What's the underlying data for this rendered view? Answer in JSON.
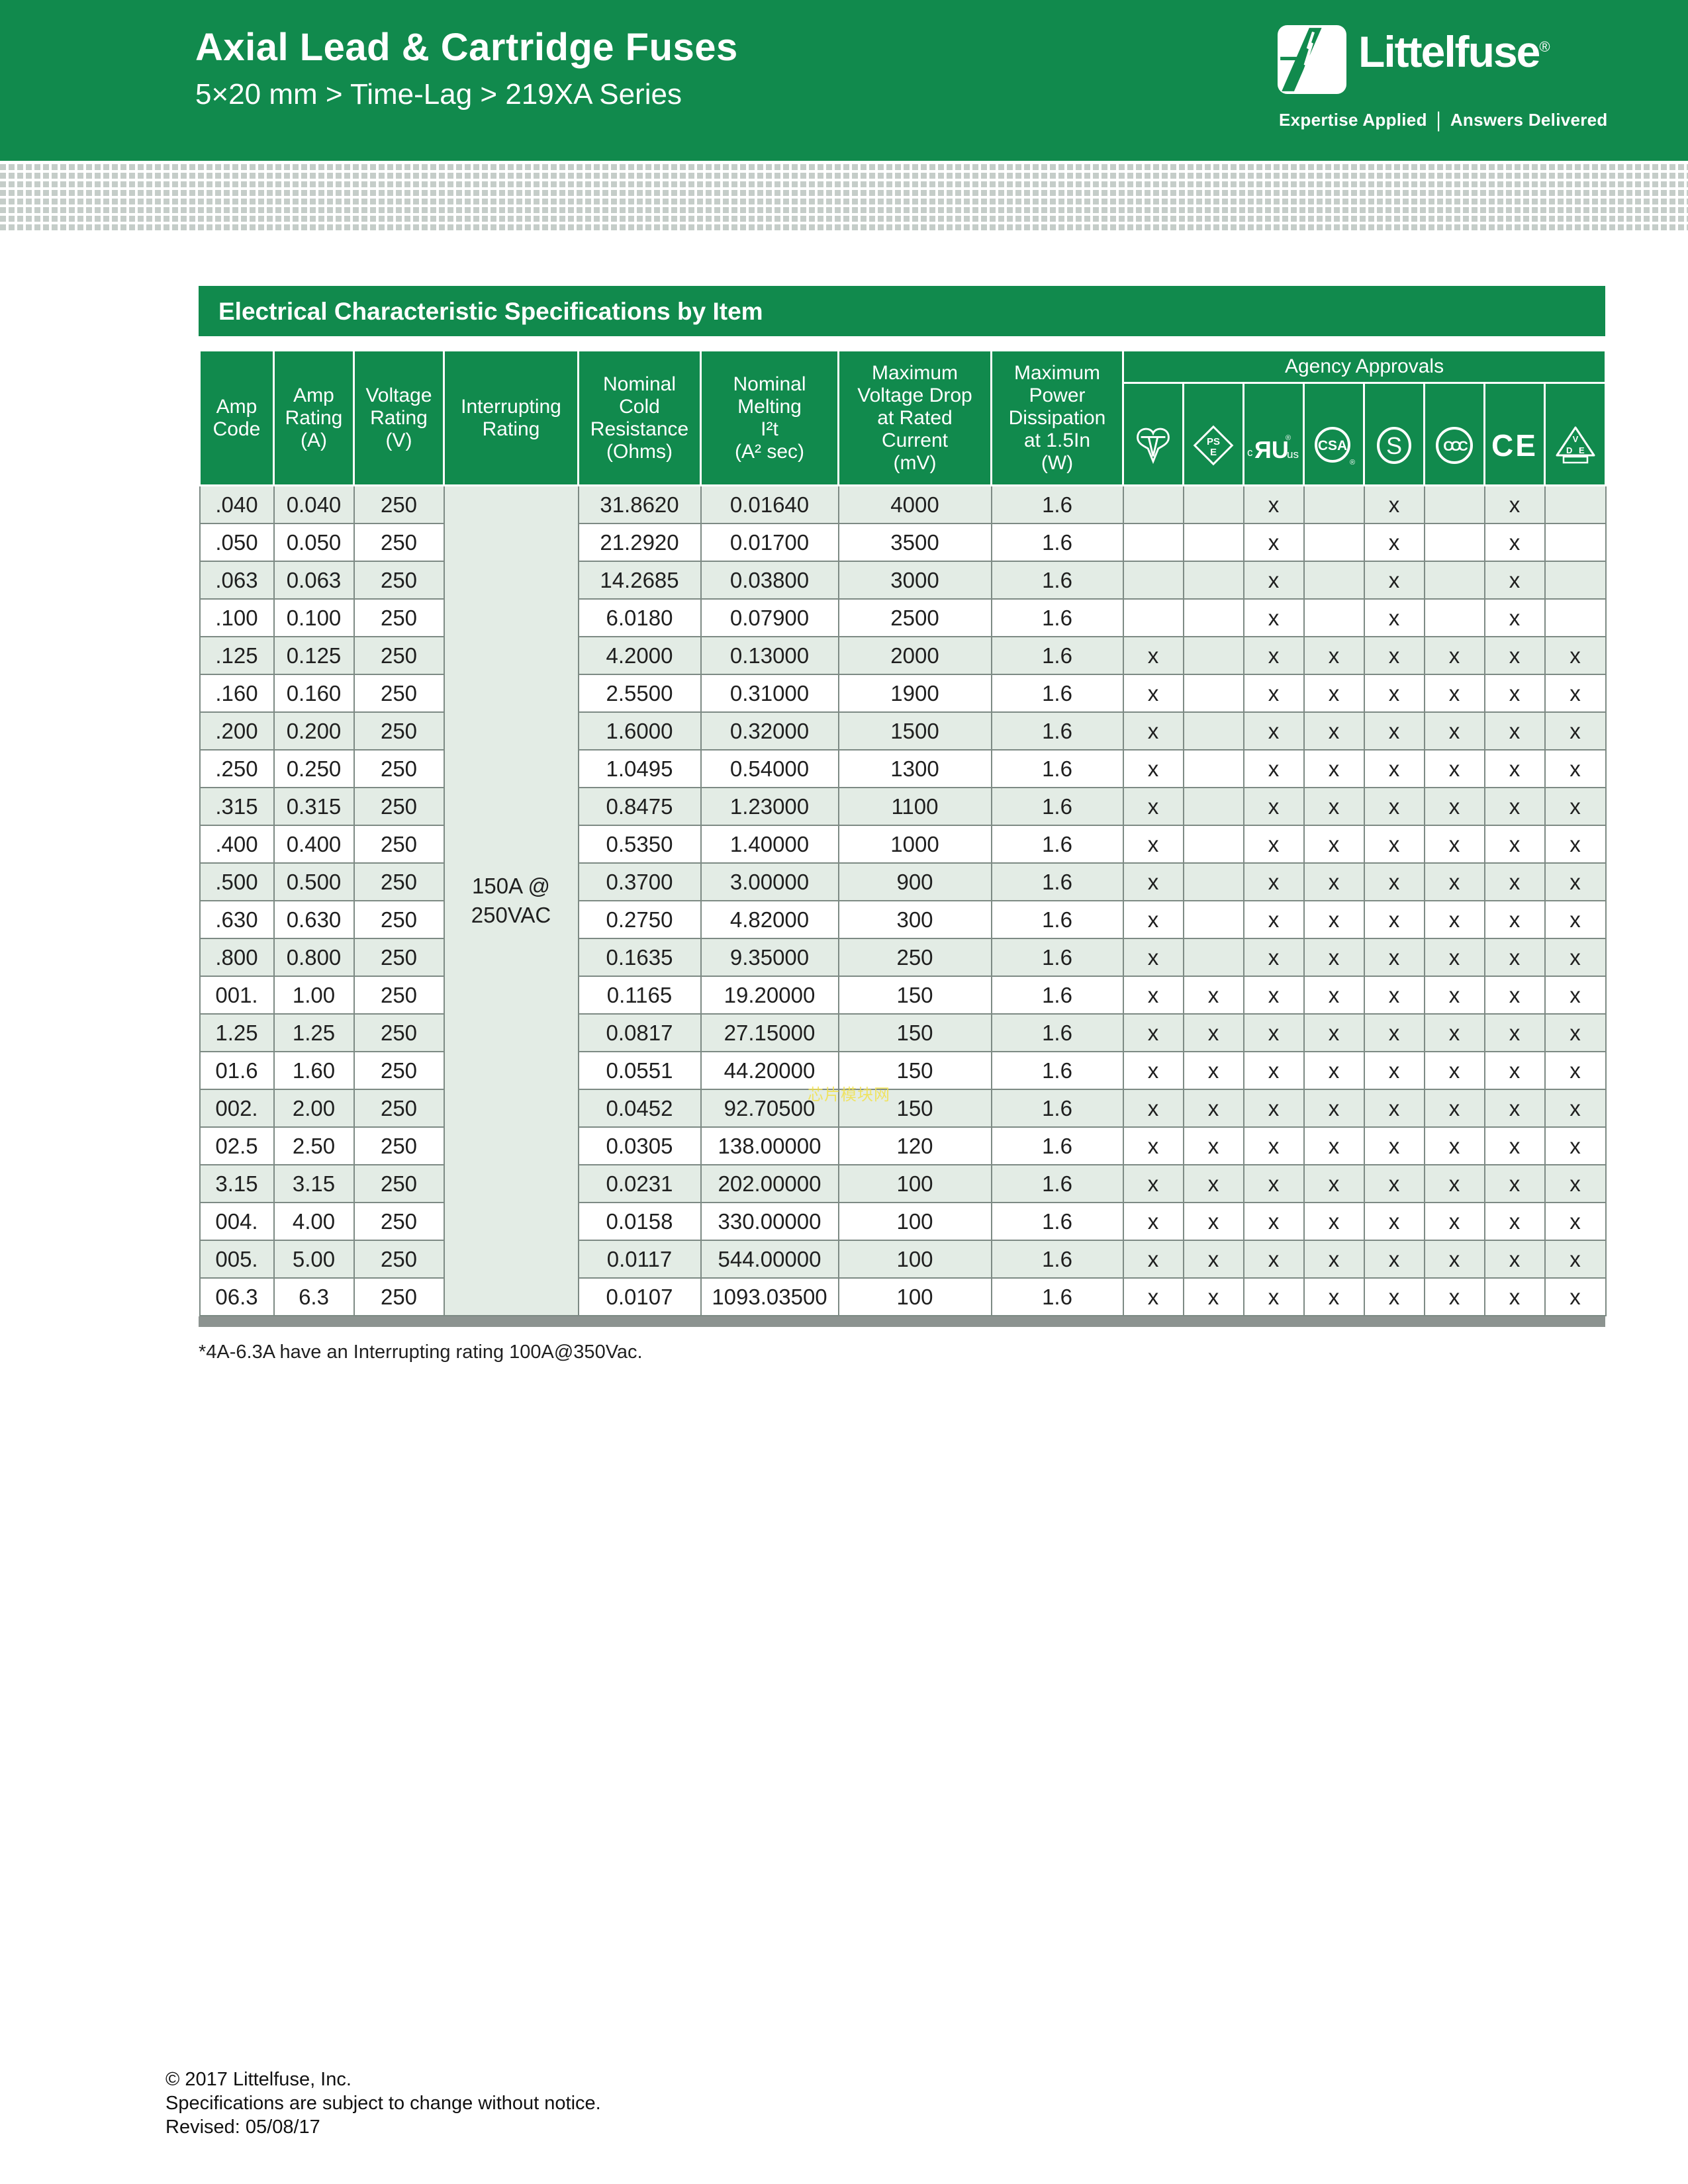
{
  "banner": {
    "title": "Axial Lead & Cartridge Fuses",
    "subtitle": "5×20 mm > Time-Lag > 219XA Series",
    "logo": {
      "text": "Littelfuse",
      "reg": "®",
      "tagline_left": "Expertise Applied",
      "tagline_sep": "|",
      "tagline_right": "Answers Delivered"
    }
  },
  "section": {
    "title": "Electrical Characteristic Specifications by Item"
  },
  "table": {
    "columns": {
      "amp_code": "Amp\nCode",
      "amp_rating": "Amp\nRating\n(A)",
      "voltage_rating": "Voltage\nRating\n(V)",
      "interrupting": "Interrupting\nRating",
      "cold_resistance": "Nominal\nCold\nResistance\n(Ohms)",
      "melting": "Nominal\nMelting\nI²t\n(A² sec)",
      "voltage_drop": "Maximum\nVoltage Drop\nat Rated\nCurrent\n(mV)",
      "power_dissipation": "Maximum\nPower\nDissipation\nat 1.5In\n(W)"
    },
    "agency_header": "Agency Approvals",
    "agencies": [
      {
        "name": "demko-mark"
      },
      {
        "name": "pse-mark",
        "line1": "PS",
        "line2": "E"
      },
      {
        "name": "cul-us-recognized-mark",
        "prefix": "c",
        "letters": "ЯU",
        "suffix": "us",
        "reg": "®"
      },
      {
        "name": "csa-mark",
        "letters": "CSA",
        "reg": "®"
      },
      {
        "name": "s-mark",
        "letters": "S"
      },
      {
        "name": "ccc-mark",
        "letters": "CCC"
      },
      {
        "name": "ce-mark",
        "letters": "CE"
      },
      {
        "name": "vde-mark",
        "v": "V",
        "d": "D",
        "e": "E"
      }
    ],
    "interrupting_value": "150A @\n250VAC",
    "rows": [
      {
        "code": ".040",
        "amp": "0.040",
        "volt": "250",
        "cold": "31.8620",
        "melt": "0.01640",
        "vdrop": "4000",
        "pdiss": "1.6",
        "approvals": [
          "",
          "",
          "x",
          "",
          "x",
          "",
          "x",
          ""
        ]
      },
      {
        "code": ".050",
        "amp": "0.050",
        "volt": "250",
        "cold": "21.2920",
        "melt": "0.01700",
        "vdrop": "3500",
        "pdiss": "1.6",
        "approvals": [
          "",
          "",
          "x",
          "",
          "x",
          "",
          "x",
          ""
        ]
      },
      {
        "code": ".063",
        "amp": "0.063",
        "volt": "250",
        "cold": "14.2685",
        "melt": "0.03800",
        "vdrop": "3000",
        "pdiss": "1.6",
        "approvals": [
          "",
          "",
          "x",
          "",
          "x",
          "",
          "x",
          ""
        ]
      },
      {
        "code": ".100",
        "amp": "0.100",
        "volt": "250",
        "cold": "6.0180",
        "melt": "0.07900",
        "vdrop": "2500",
        "pdiss": "1.6",
        "approvals": [
          "",
          "",
          "x",
          "",
          "x",
          "",
          "x",
          ""
        ]
      },
      {
        "code": ".125",
        "amp": "0.125",
        "volt": "250",
        "cold": "4.2000",
        "melt": "0.13000",
        "vdrop": "2000",
        "pdiss": "1.6",
        "approvals": [
          "x",
          "",
          "x",
          "x",
          "x",
          "x",
          "x",
          "x"
        ]
      },
      {
        "code": ".160",
        "amp": "0.160",
        "volt": "250",
        "cold": "2.5500",
        "melt": "0.31000",
        "vdrop": "1900",
        "pdiss": "1.6",
        "approvals": [
          "x",
          "",
          "x",
          "x",
          "x",
          "x",
          "x",
          "x"
        ]
      },
      {
        "code": ".200",
        "amp": "0.200",
        "volt": "250",
        "cold": "1.6000",
        "melt": "0.32000",
        "vdrop": "1500",
        "pdiss": "1.6",
        "approvals": [
          "x",
          "",
          "x",
          "x",
          "x",
          "x",
          "x",
          "x"
        ]
      },
      {
        "code": ".250",
        "amp": "0.250",
        "volt": "250",
        "cold": "1.0495",
        "melt": "0.54000",
        "vdrop": "1300",
        "pdiss": "1.6",
        "approvals": [
          "x",
          "",
          "x",
          "x",
          "x",
          "x",
          "x",
          "x"
        ]
      },
      {
        "code": ".315",
        "amp": "0.315",
        "volt": "250",
        "cold": "0.8475",
        "melt": "1.23000",
        "vdrop": "1100",
        "pdiss": "1.6",
        "approvals": [
          "x",
          "",
          "x",
          "x",
          "x",
          "x",
          "x",
          "x"
        ]
      },
      {
        "code": ".400",
        "amp": "0.400",
        "volt": "250",
        "cold": "0.5350",
        "melt": "1.40000",
        "vdrop": "1000",
        "pdiss": "1.6",
        "approvals": [
          "x",
          "",
          "x",
          "x",
          "x",
          "x",
          "x",
          "x"
        ]
      },
      {
        "code": ".500",
        "amp": "0.500",
        "volt": "250",
        "cold": "0.3700",
        "melt": "3.00000",
        "vdrop": "900",
        "pdiss": "1.6",
        "approvals": [
          "x",
          "",
          "x",
          "x",
          "x",
          "x",
          "x",
          "x"
        ]
      },
      {
        "code": ".630",
        "amp": "0.630",
        "volt": "250",
        "cold": "0.2750",
        "melt": "4.82000",
        "vdrop": "300",
        "pdiss": "1.6",
        "approvals": [
          "x",
          "",
          "x",
          "x",
          "x",
          "x",
          "x",
          "x"
        ]
      },
      {
        "code": ".800",
        "amp": "0.800",
        "volt": "250",
        "cold": "0.1635",
        "melt": "9.35000",
        "vdrop": "250",
        "pdiss": "1.6",
        "approvals": [
          "x",
          "",
          "x",
          "x",
          "x",
          "x",
          "x",
          "x"
        ]
      },
      {
        "code": "001.",
        "amp": "1.00",
        "volt": "250",
        "cold": "0.1165",
        "melt": "19.20000",
        "vdrop": "150",
        "pdiss": "1.6",
        "approvals": [
          "x",
          "x",
          "x",
          "x",
          "x",
          "x",
          "x",
          "x"
        ]
      },
      {
        "code": "1.25",
        "amp": "1.25",
        "volt": "250",
        "cold": "0.0817",
        "melt": "27.15000",
        "vdrop": "150",
        "pdiss": "1.6",
        "approvals": [
          "x",
          "x",
          "x",
          "x",
          "x",
          "x",
          "x",
          "x"
        ]
      },
      {
        "code": "01.6",
        "amp": "1.60",
        "volt": "250",
        "cold": "0.0551",
        "melt": "44.20000",
        "vdrop": "150",
        "pdiss": "1.6",
        "approvals": [
          "x",
          "x",
          "x",
          "x",
          "x",
          "x",
          "x",
          "x"
        ]
      },
      {
        "code": "002.",
        "amp": "2.00",
        "volt": "250",
        "cold": "0.0452",
        "melt": "92.70500",
        "vdrop": "150",
        "pdiss": "1.6",
        "approvals": [
          "x",
          "x",
          "x",
          "x",
          "x",
          "x",
          "x",
          "x"
        ]
      },
      {
        "code": "02.5",
        "amp": "2.50",
        "volt": "250",
        "cold": "0.0305",
        "melt": "138.00000",
        "vdrop": "120",
        "pdiss": "1.6",
        "approvals": [
          "x",
          "x",
          "x",
          "x",
          "x",
          "x",
          "x",
          "x"
        ]
      },
      {
        "code": "3.15",
        "amp": "3.15",
        "volt": "250",
        "cold": "0.0231",
        "melt": "202.00000",
        "vdrop": "100",
        "pdiss": "1.6",
        "approvals": [
          "x",
          "x",
          "x",
          "x",
          "x",
          "x",
          "x",
          "x"
        ]
      },
      {
        "code": "004.",
        "amp": "4.00",
        "volt": "250",
        "cold": "0.0158",
        "melt": "330.00000",
        "vdrop": "100",
        "pdiss": "1.6",
        "approvals": [
          "x",
          "x",
          "x",
          "x",
          "x",
          "x",
          "x",
          "x"
        ]
      },
      {
        "code": "005.",
        "amp": "5.00",
        "volt": "250",
        "cold": "0.0117",
        "melt": "544.00000",
        "vdrop": "100",
        "pdiss": "1.6",
        "approvals": [
          "x",
          "x",
          "x",
          "x",
          "x",
          "x",
          "x",
          "x"
        ]
      },
      {
        "code": "06.3",
        "amp": "6.3",
        "volt": "250",
        "cold": "0.0107",
        "melt": "1093.03500",
        "vdrop": "100",
        "pdiss": "1.6",
        "approvals": [
          "x",
          "x",
          "x",
          "x",
          "x",
          "x",
          "x",
          "x"
        ]
      }
    ]
  },
  "footnote": "*4A-6.3A have an Interrupting rating 100A@350Vac.",
  "watermark": "芯片模块网",
  "footer": {
    "line1": "© 2017 Littelfuse, Inc.",
    "line2": "Specifications are subject to change without notice.",
    "line3": "Revised: 05/08/17"
  },
  "colors": {
    "green": "#118a4d",
    "row_green": "#e3ece5",
    "border_gray": "#7d8a84",
    "bar_gray": "#8c9390",
    "watermark_yellow": "#f2e24d",
    "dot_gray": "#c5cdc9"
  }
}
